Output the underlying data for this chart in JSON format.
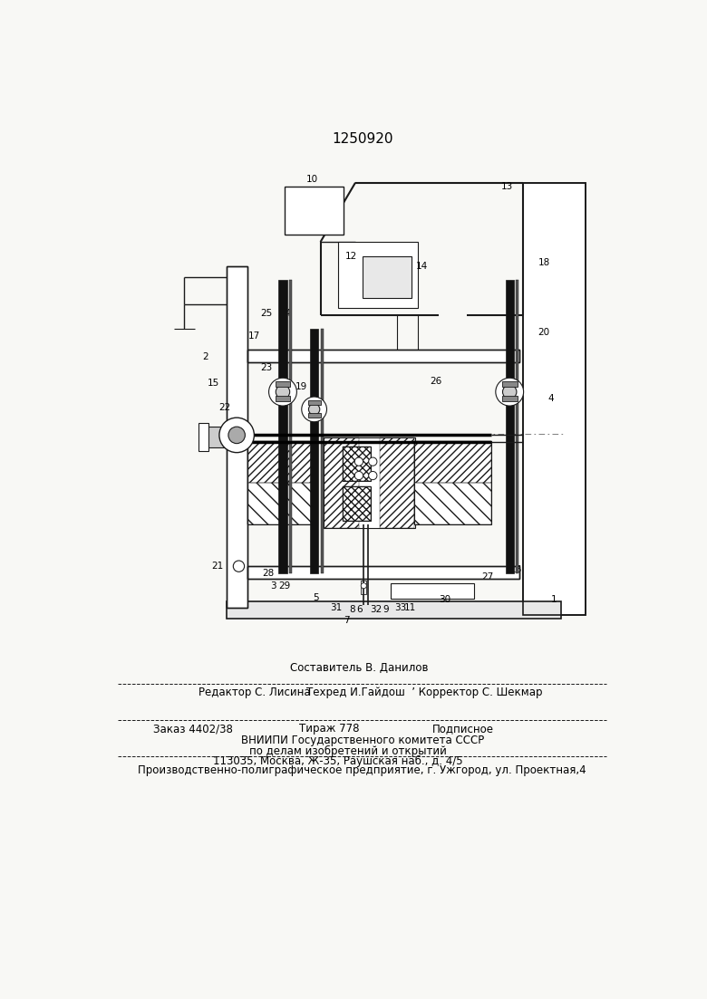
{
  "title": "1250920",
  "bg_color": "#f8f8f5",
  "line_color": "#1a1a1a",
  "footer_line1_center": "Составитель В. Данилов",
  "footer_line1_left": "Редактор С. Лисина",
  "footer_line2_center": "Техред И.Гайдош  ’ Корректор С. Шекмар",
  "footer_line3_left": "Заказ 4402/38",
  "footer_line3_center": "Тираж 778",
  "footer_line3_right": "Подписное",
  "footer_line4": "ВНИИПИ Государственного комитета СССР",
  "footer_line5": "по делам изобретений и открытий",
  "footer_line6": "113035, Москва, Ж-35, Раушская наб., д. 4/5",
  "footer_line7": "Производственно-полиграфическое предприятие, г. Ужгород, ул. Проектная,4"
}
